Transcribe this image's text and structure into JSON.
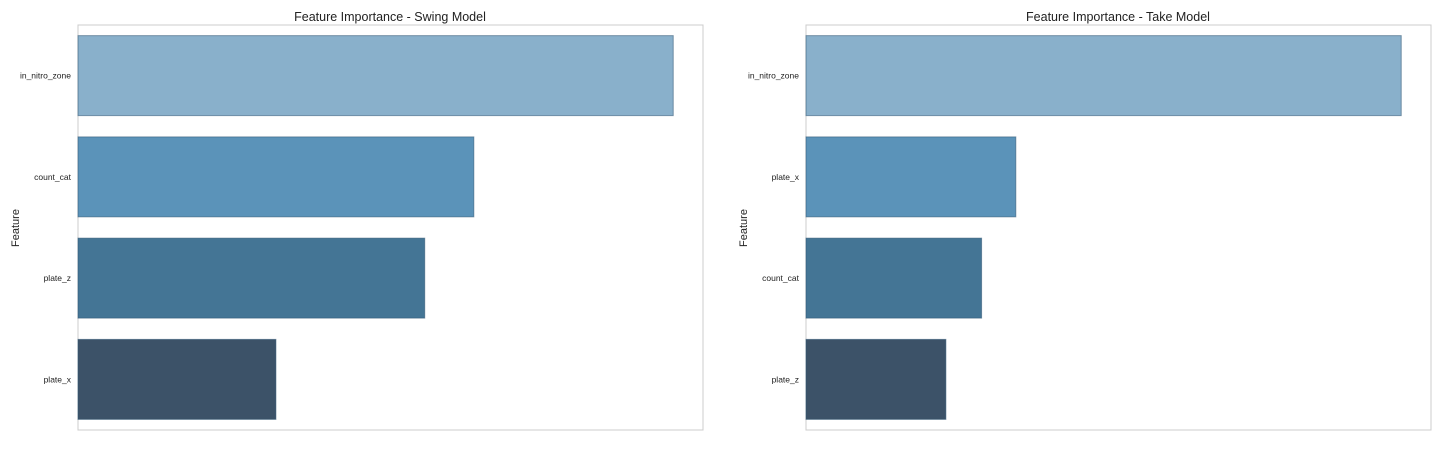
{
  "chart_data": [
    {
      "type": "bar",
      "orientation": "horizontal",
      "title": "Feature Importance - Swing Model",
      "ylabel": "Feature",
      "xlabel": "",
      "categories": [
        "in_nitro_zone",
        "count_cat",
        "plate_z",
        "plate_x"
      ],
      "values": [
        0.4,
        0.266,
        0.233,
        0.133
      ],
      "xlim": [
        0,
        0.42
      ],
      "colors": [
        "#89b0cb",
        "#5b93b9",
        "#447595",
        "#3c5268"
      ],
      "grid": false,
      "x_tick_labels_visible": false
    },
    {
      "type": "bar",
      "orientation": "horizontal",
      "title": "Feature Importance - Take Model",
      "ylabel": "Feature",
      "xlabel": "",
      "categories": [
        "in_nitro_zone",
        "plate_x",
        "count_cat",
        "plate_z"
      ],
      "values": [
        0.4,
        0.141,
        0.118,
        0.094
      ],
      "xlim": [
        0,
        0.42
      ],
      "colors": [
        "#89b0cb",
        "#5b93b9",
        "#447595",
        "#3c5268"
      ],
      "grid": false,
      "x_tick_labels_visible": false
    }
  ]
}
